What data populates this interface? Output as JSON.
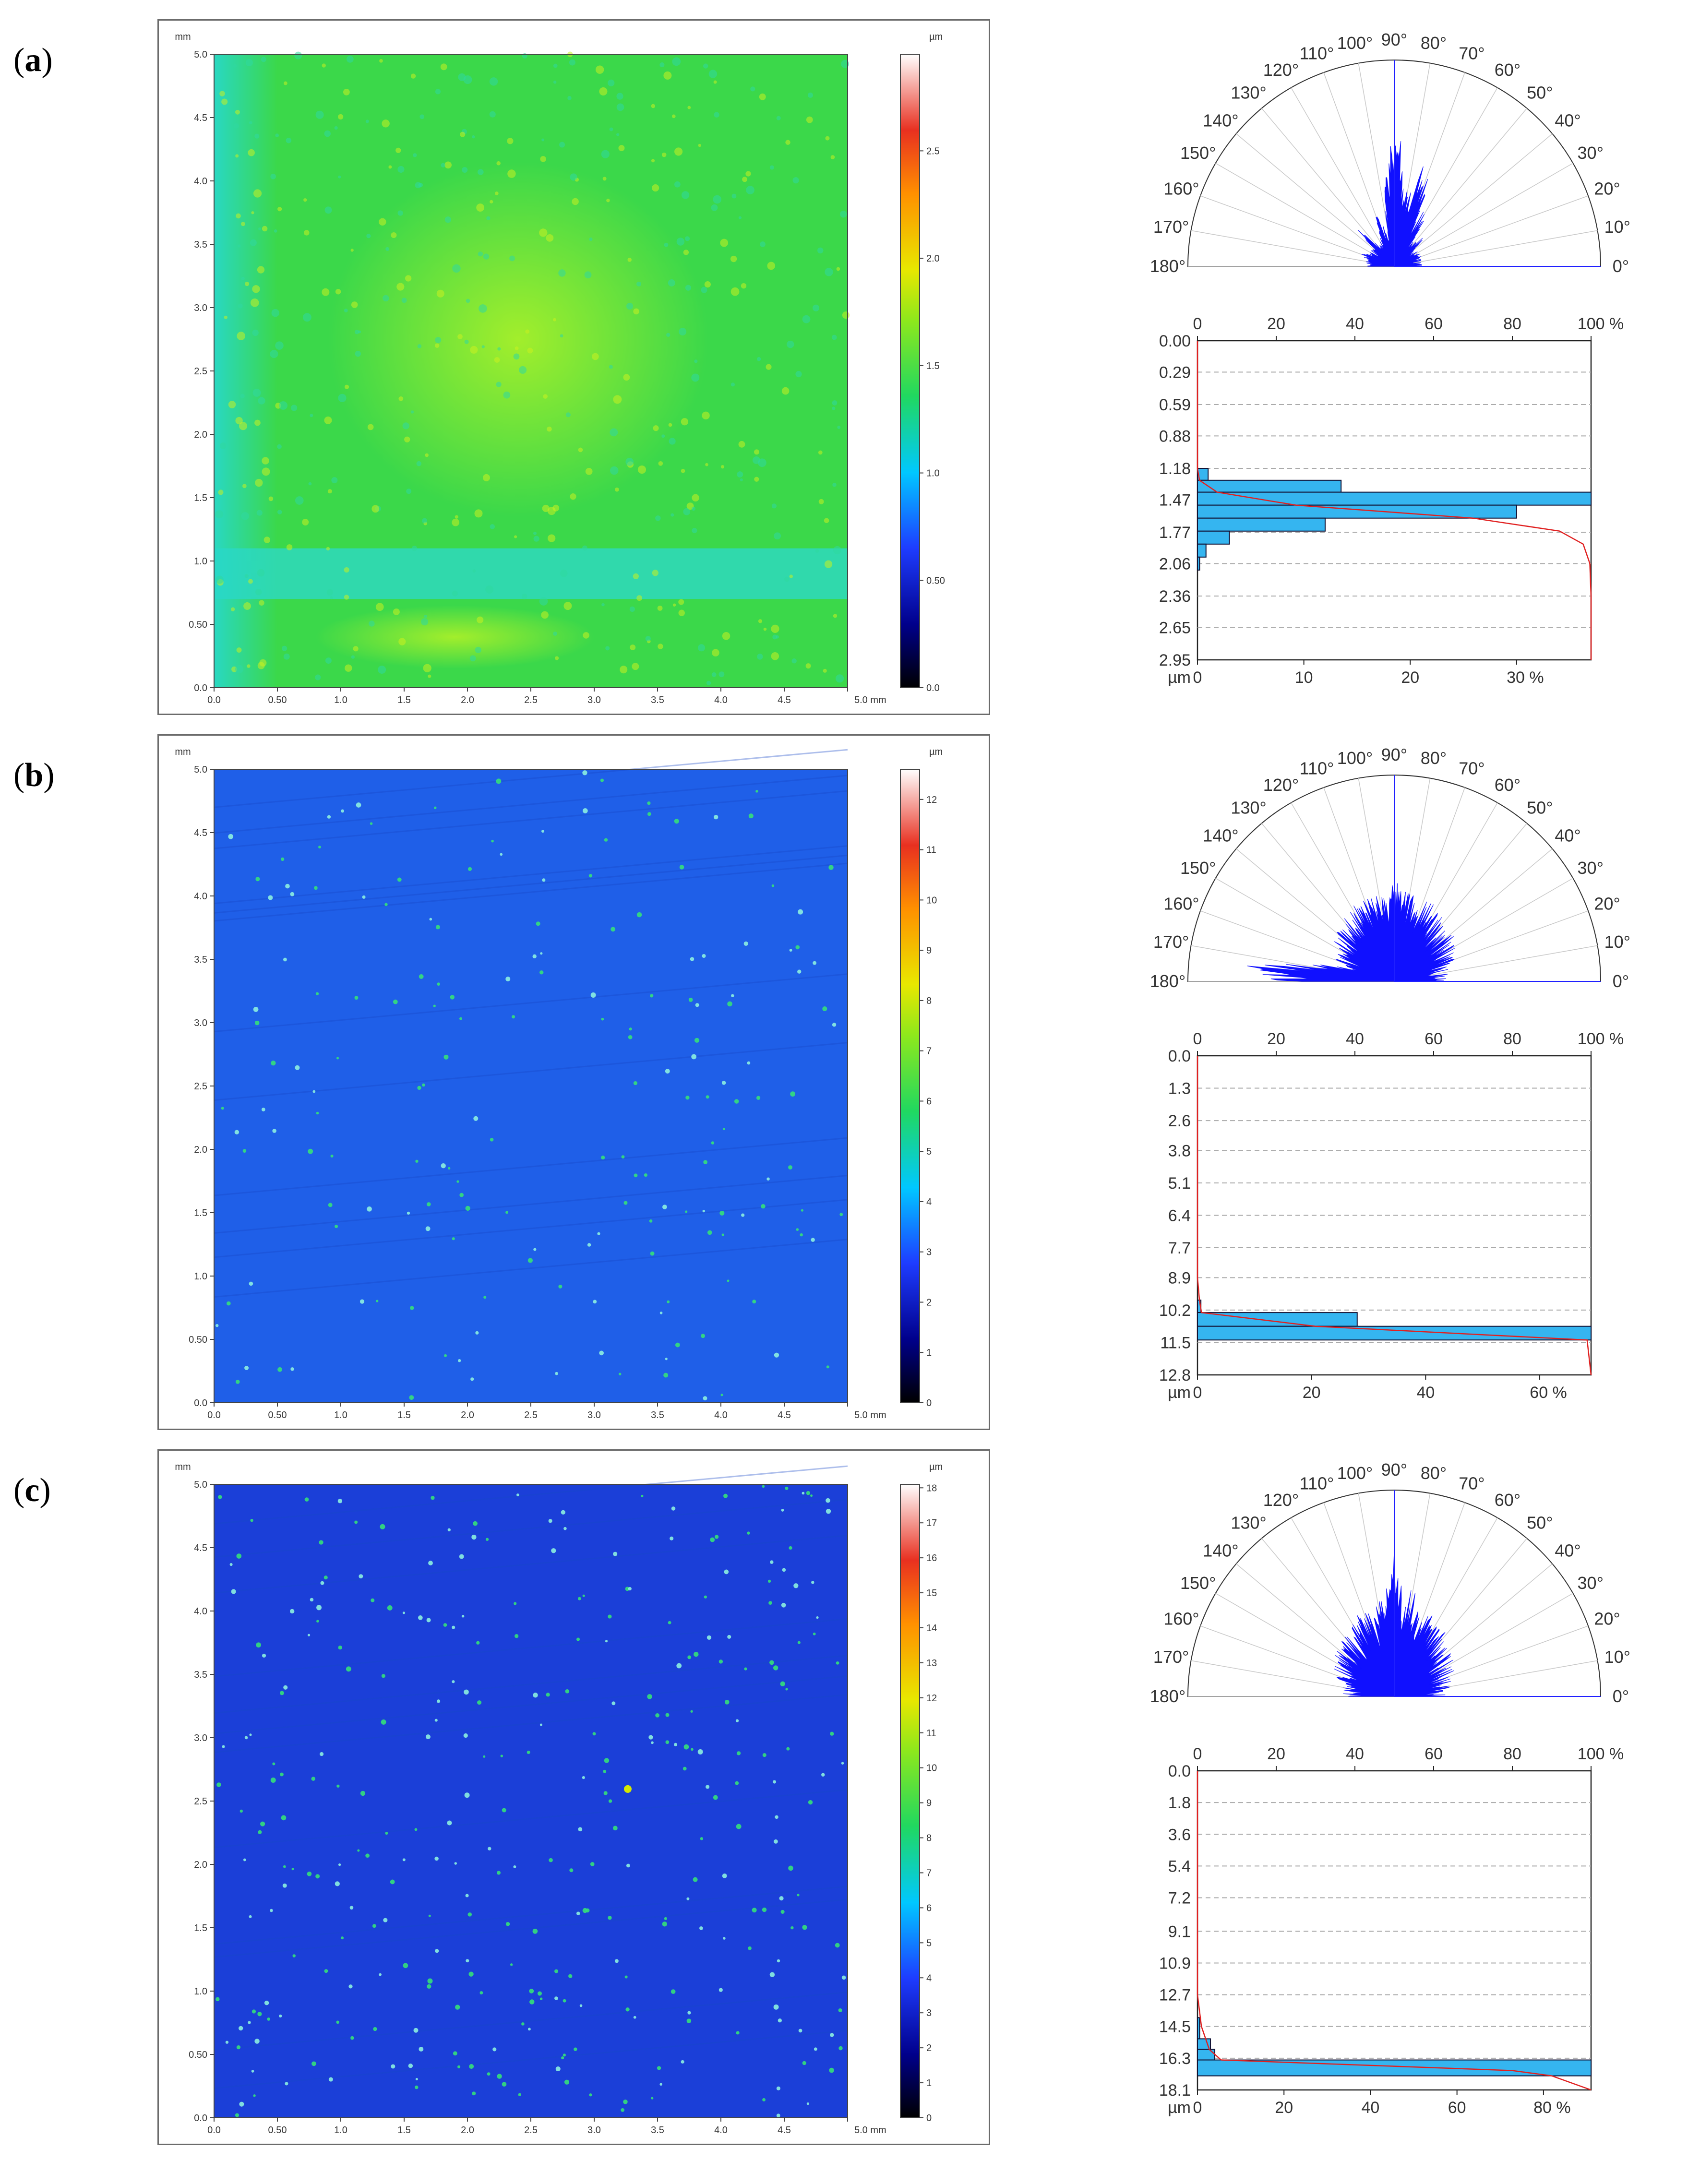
{
  "panels": [
    {
      "id": "a",
      "label_letter": "a",
      "map": {
        "y_unit": "mm",
        "x_unit": "mm",
        "colorbar_unit": "µm",
        "x_ticks": [
          "0.0",
          "0.50",
          "1.0",
          "1.5",
          "2.0",
          "2.5",
          "3.0",
          "3.5",
          "4.0",
          "4.5",
          "5.0 mm"
        ],
        "y_ticks": [
          "0.0",
          "0.50",
          "1.0",
          "1.5",
          "2.0",
          "2.5",
          "3.0",
          "3.5",
          "4.0",
          "4.5",
          "5.0"
        ],
        "colorbar_ticks": [
          "0.0",
          "0.50",
          "1.0",
          "1.5",
          "2.0",
          "2.5"
        ],
        "colorbar_max": 2.95,
        "colors": {
          "base": "#3bd84a",
          "light": "#a8ef2a",
          "edge": "#28d8c8",
          "band": "#2fd9bd"
        }
      },
      "rose": {
        "labels": [
          "0°",
          "10°",
          "20°",
          "30°",
          "40°",
          "50°",
          "60°",
          "70°",
          "80°",
          "90°",
          "100°",
          "110°",
          "120°",
          "130°",
          "140°",
          "150°",
          "160°",
          "170°",
          "180°"
        ],
        "lobes": [
          {
            "angle_deg": 90,
            "value": 0.78
          },
          {
            "angle_deg": 72,
            "value": 0.62
          },
          {
            "angle_deg": 80,
            "value": 0.45
          },
          {
            "angle_deg": 60,
            "value": 0.35
          },
          {
            "angle_deg": 110,
            "value": 0.3
          },
          {
            "angle_deg": 135,
            "value": 0.25
          },
          {
            "angle_deg": 45,
            "value": 0.22
          },
          {
            "angle_deg": 160,
            "value": 0.2
          },
          {
            "angle_deg": 20,
            "value": 0.15
          }
        ]
      },
      "histogram": {
        "top_ticks": [
          "0",
          "20",
          "40",
          "60",
          "80",
          "100 %"
        ],
        "bottom_ticks": [
          "0",
          "10",
          "20",
          "30 %"
        ],
        "bottom_unit": "µm",
        "y_labels": [
          "0.00",
          "0.29",
          "0.59",
          "0.88",
          "1.18",
          "1.47",
          "1.77",
          "2.06",
          "2.36",
          "2.65",
          "2.95"
        ],
        "y_max": 2.95,
        "x_max_percent": 37,
        "bars": [
          {
            "y0": 1.18,
            "y1": 1.29,
            "value": 1
          },
          {
            "y0": 1.29,
            "y1": 1.4,
            "value": 13.5
          },
          {
            "y0": 1.4,
            "y1": 1.52,
            "value": 37
          },
          {
            "y0": 1.52,
            "y1": 1.64,
            "value": 30
          },
          {
            "y0": 1.64,
            "y1": 1.76,
            "value": 12
          },
          {
            "y0": 1.76,
            "y1": 1.88,
            "value": 3
          },
          {
            "y0": 1.88,
            "y1": 2.0,
            "value": 0.8
          },
          {
            "y0": 2.0,
            "y1": 2.12,
            "value": 0.2
          }
        ],
        "cumulative": [
          [
            0,
            0
          ],
          [
            1.18,
            0
          ],
          [
            1.29,
            0.5
          ],
          [
            1.4,
            5
          ],
          [
            1.52,
            25
          ],
          [
            1.64,
            70
          ],
          [
            1.76,
            92
          ],
          [
            1.88,
            98
          ],
          [
            2.06,
            99.7
          ],
          [
            2.36,
            100
          ],
          [
            2.95,
            100
          ]
        ]
      }
    },
    {
      "id": "b",
      "label_letter": "b",
      "map": {
        "y_unit": "mm",
        "x_unit": "mm",
        "colorbar_unit": "µm",
        "x_ticks": [
          "0.0",
          "0.50",
          "1.0",
          "1.5",
          "2.0",
          "2.5",
          "3.0",
          "3.5",
          "4.0",
          "4.5",
          "5.0 mm"
        ],
        "y_ticks": [
          "0.0",
          "0.50",
          "1.0",
          "1.5",
          "2.0",
          "2.5",
          "3.0",
          "3.5",
          "4.0",
          "4.5",
          "5.0"
        ],
        "colorbar_ticks": [
          "0",
          "1",
          "2",
          "3",
          "4",
          "5",
          "6",
          "7",
          "8",
          "9",
          "10",
          "11",
          "12"
        ],
        "colorbar_max": 12.6,
        "colors": {
          "base": "#1f5fe8",
          "light": "#2a78f0",
          "edge": "#1f5fe8",
          "band": "#1f5fe8"
        }
      },
      "rose": {
        "labels": [
          "0°",
          "10°",
          "20°",
          "30°",
          "40°",
          "50°",
          "60°",
          "70°",
          "80°",
          "90°",
          "100°",
          "110°",
          "120°",
          "130°",
          "140°",
          "150°",
          "160°",
          "170°",
          "180°"
        ],
        "lobes": [
          {
            "angle_deg": 90,
            "value": 0.55
          },
          {
            "angle_deg": 100,
            "value": 0.5
          },
          {
            "angle_deg": 80,
            "value": 0.48
          },
          {
            "angle_deg": 65,
            "value": 0.4
          },
          {
            "angle_deg": 115,
            "value": 0.42
          },
          {
            "angle_deg": 140,
            "value": 0.3
          },
          {
            "angle_deg": 175,
            "value": 0.85
          },
          {
            "angle_deg": 40,
            "value": 0.28
          },
          {
            "angle_deg": 15,
            "value": 0.2
          }
        ]
      },
      "histogram": {
        "top_ticks": [
          "0",
          "20",
          "40",
          "60",
          "80",
          "100 %"
        ],
        "bottom_ticks": [
          "0",
          "20",
          "40",
          "60 %"
        ],
        "bottom_unit": "µm",
        "y_labels": [
          "0.0",
          "1.3",
          "2.6",
          "3.8",
          "5.1",
          "6.4",
          "7.7",
          "8.9",
          "10.2",
          "11.5",
          "12.8"
        ],
        "y_max": 12.8,
        "x_max_percent": 69,
        "bars": [
          {
            "y0": 9.8,
            "y1": 10.3,
            "value": 0.6
          },
          {
            "y0": 10.3,
            "y1": 10.85,
            "value": 28
          },
          {
            "y0": 10.85,
            "y1": 11.4,
            "value": 69
          }
        ],
        "cumulative": [
          [
            0,
            0
          ],
          [
            8.9,
            0
          ],
          [
            9.8,
            0.5
          ],
          [
            10.3,
            1
          ],
          [
            10.85,
            30
          ],
          [
            11.4,
            99
          ],
          [
            12.8,
            100
          ]
        ]
      }
    },
    {
      "id": "c",
      "label_letter": "c",
      "map": {
        "y_unit": "mm",
        "x_unit": "mm",
        "colorbar_unit": "µm",
        "x_ticks": [
          "0.0",
          "0.50",
          "1.0",
          "1.5",
          "2.0",
          "2.5",
          "3.0",
          "3.5",
          "4.0",
          "4.5",
          "5.0 mm"
        ],
        "y_ticks": [
          "0.0",
          "0.50",
          "1.0",
          "1.5",
          "2.0",
          "2.5",
          "3.0",
          "3.5",
          "4.0",
          "4.5",
          "5.0"
        ],
        "colorbar_ticks": [
          "0",
          "1",
          "2",
          "3",
          "4",
          "5",
          "6",
          "7",
          "8",
          "9",
          "10",
          "11",
          "12",
          "13",
          "14",
          "15",
          "16",
          "17",
          "18"
        ],
        "colorbar_max": 18.1,
        "colors": {
          "base": "#1b3fd8",
          "light": "#2450e4",
          "edge": "#1b3fd8",
          "band": "#1b3fd8"
        }
      },
      "rose": {
        "labels": [
          "0°",
          "10°",
          "20°",
          "30°",
          "40°",
          "50°",
          "60°",
          "70°",
          "80°",
          "90°",
          "100°",
          "110°",
          "120°",
          "130°",
          "140°",
          "150°",
          "160°",
          "170°",
          "180°"
        ],
        "lobes": [
          {
            "angle_deg": 90,
            "value": 0.75
          },
          {
            "angle_deg": 100,
            "value": 0.6
          },
          {
            "angle_deg": 80,
            "value": 0.58
          },
          {
            "angle_deg": 65,
            "value": 0.5
          },
          {
            "angle_deg": 115,
            "value": 0.5
          },
          {
            "angle_deg": 135,
            "value": 0.4
          },
          {
            "angle_deg": 45,
            "value": 0.38
          },
          {
            "angle_deg": 160,
            "value": 0.3
          },
          {
            "angle_deg": 20,
            "value": 0.28
          }
        ]
      },
      "histogram": {
        "top_ticks": [
          "0",
          "20",
          "40",
          "60",
          "80",
          "100 %"
        ],
        "bottom_ticks": [
          "0",
          "20",
          "40",
          "60",
          "80 %"
        ],
        "bottom_unit": "µm",
        "y_labels": [
          "0.0",
          "1.8",
          "3.6",
          "5.4",
          "7.2",
          "9.1",
          "10.9",
          "12.7",
          "14.5",
          "16.3",
          "18.1"
        ],
        "y_max": 18.1,
        "x_max_percent": 91,
        "bars": [
          {
            "y0": 14.0,
            "y1": 15.2,
            "value": 0.5
          },
          {
            "y0": 15.2,
            "y1": 15.8,
            "value": 3
          },
          {
            "y0": 15.8,
            "y1": 16.4,
            "value": 4
          },
          {
            "y0": 16.4,
            "y1": 17.3,
            "value": 91
          }
        ],
        "cumulative": [
          [
            0,
            0
          ],
          [
            12.7,
            0
          ],
          [
            14.5,
            1
          ],
          [
            15.8,
            3
          ],
          [
            16.4,
            6
          ],
          [
            17.0,
            80
          ],
          [
            17.3,
            90
          ],
          [
            18.1,
            100
          ]
        ]
      }
    }
  ]
}
